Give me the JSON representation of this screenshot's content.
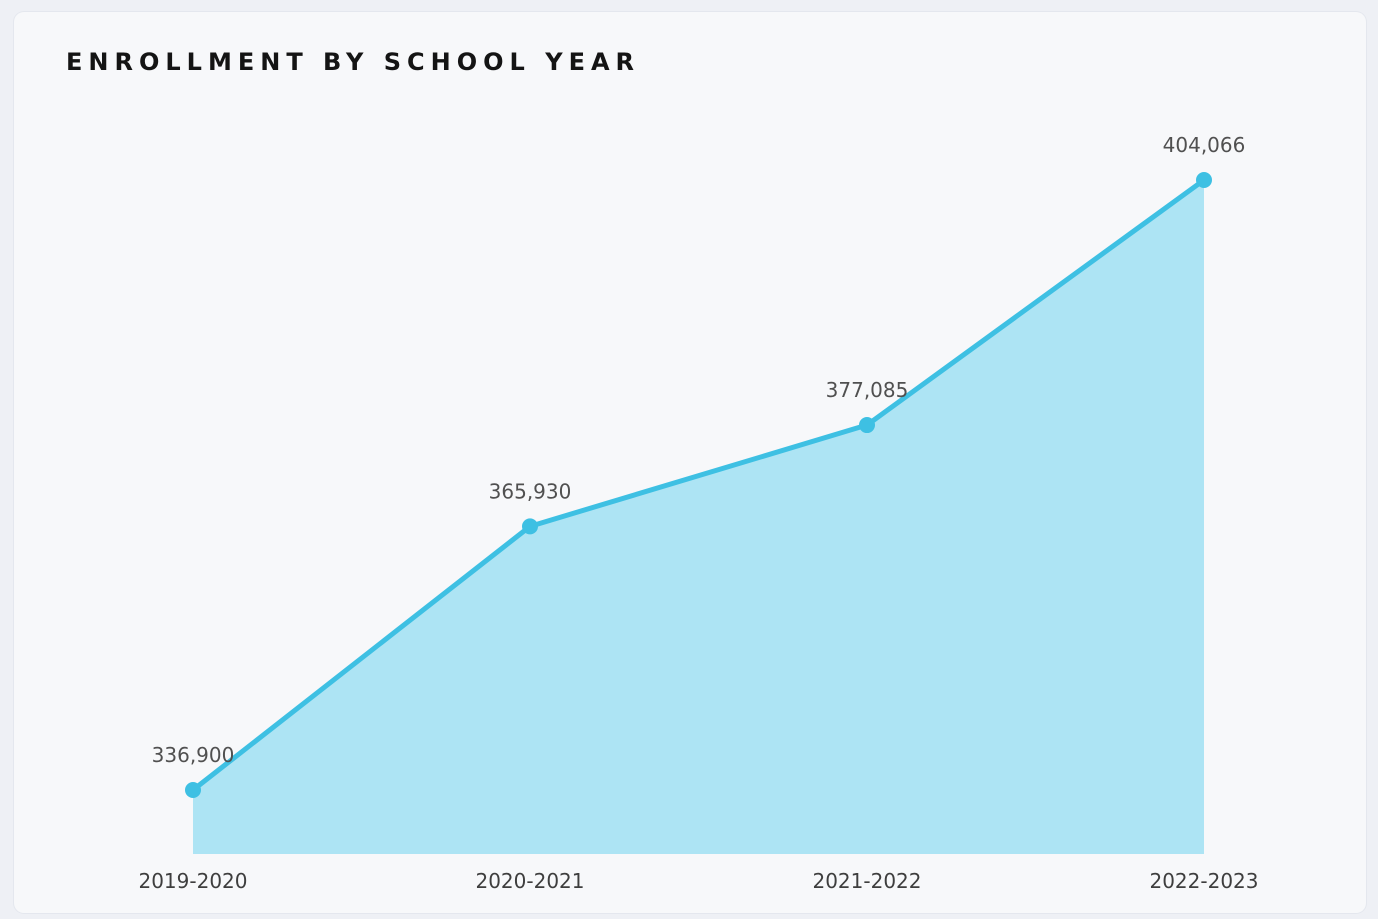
{
  "title": "ENROLLMENT BY SCHOOL YEAR",
  "colors": {
    "line": "#3ec0e3",
    "area": "#ade4f4",
    "card_background": "#f7f8fa",
    "page_background": "#eef0f5"
  },
  "chart_data": {
    "type": "area",
    "title": "ENROLLMENT BY SCHOOL YEAR",
    "categories": [
      "2019-2020",
      "2020-2021",
      "2021-2022",
      "2022-2023"
    ],
    "series": [
      {
        "values": [
          336900,
          365930,
          377085,
          404066
        ],
        "data_labels": [
          "336,900",
          "365,930",
          "377,085",
          "404,066"
        ]
      }
    ],
    "xlabel": "",
    "ylabel": "",
    "grid": false,
    "legend": "none"
  }
}
